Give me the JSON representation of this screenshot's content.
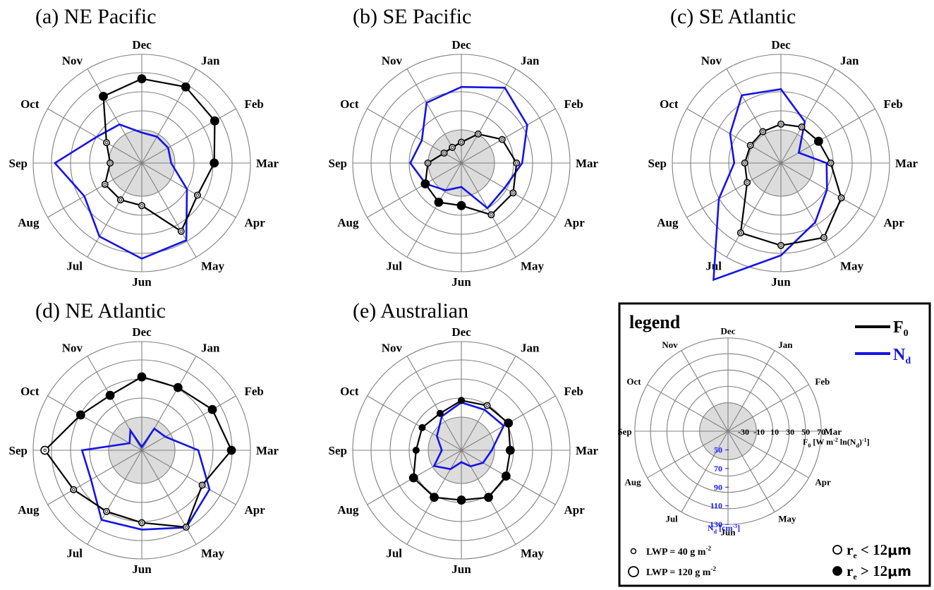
{
  "colors": {
    "f0": "#000000",
    "nd": "#1414e6",
    "ring": "#808080",
    "spoke": "#808080",
    "inner": "#dcdcdc"
  },
  "months": [
    "Dec",
    "Jan",
    "Feb",
    "Mar",
    "Apr",
    "May",
    "Jun",
    "Jul",
    "Aug",
    "Sep",
    "Oct",
    "Nov"
  ],
  "legend": {
    "title": "legend",
    "f0_label": "F",
    "f0_sub": "0",
    "nd_label": "N",
    "nd_sub": "d",
    "f0_ticks": [
      "-30",
      "-10",
      "10",
      "30",
      "50",
      "70"
    ],
    "f0_axis_label": "F",
    "f0_axis_label_sub": "0",
    "f0_axis_label_rest": " [W m",
    "f0_axis_label_sup": "-2",
    "f0_axis_label_tail": " ln(N",
    "f0_axis_label_sub2": "d",
    "f0_axis_label_end": ")",
    "f0_axis_label_sup2": "-1",
    "f0_axis_label_close": "]",
    "nd_ticks": [
      "50",
      "70",
      "90",
      "110",
      "130"
    ],
    "nd_axis_label": "N",
    "nd_axis_label_sub": "d",
    "nd_axis_label_rest": " [cm",
    "nd_axis_label_sup": "-3",
    "nd_axis_label_close": "]",
    "lwp_small": "LWP = 40 g m",
    "lwp_small_sup": "-2",
    "lwp_large": "LWP = 120 g m",
    "lwp_large_sup": "-2",
    "re_small_pre": "r",
    "re_small_sub": "e",
    "re_small_post": " < 12",
    "re_small_unit": "μm",
    "re_large_pre": "r",
    "re_large_sub": "e",
    "re_large_post": " > 12",
    "re_large_unit": "μm"
  },
  "chart_data": [
    {
      "type": "radar",
      "title": "(a)   NE Pacific",
      "categories": [
        "Dec",
        "Jan",
        "Feb",
        "Mar",
        "Apr",
        "May",
        "Jun",
        "Jul",
        "Aug",
        "Sep",
        "Oct",
        "Nov"
      ],
      "f0_range": [
        -50,
        70
      ],
      "nd_range": [
        30,
        130
      ],
      "series": [
        {
          "name": "F0",
          "values": [
            43,
            47,
            43,
            30,
            21,
            37,
            -3,
            -3,
            -3,
            -15,
            -5,
            35
          ],
          "lwp": [
            "large",
            "large",
            "large",
            "large",
            "small",
            "small",
            "small",
            "small",
            "small",
            "small",
            "small",
            "large"
          ],
          "re": [
            "large",
            "large",
            "large",
            "large",
            "small",
            "small",
            "small",
            "small",
            "small",
            "small",
            "small",
            "large"
          ]
        },
        {
          "name": "Nd",
          "values": [
            58,
            58,
            58,
            57,
            78,
            112,
            118,
            108,
            91,
            110,
            78,
            71
          ]
        }
      ]
    },
    {
      "type": "radar",
      "title": "(b)   SE Pacific",
      "categories": [
        "Dec",
        "Jan",
        "Feb",
        "Mar",
        "Apr",
        "May",
        "Jun",
        "Jul",
        "Aug",
        "Sep",
        "Oct",
        "Nov"
      ],
      "f0_range": [
        -50,
        70
      ],
      "nd_range": [
        30,
        130
      ],
      "series": [
        {
          "name": "F0",
          "values": [
            -27,
            -13,
            2,
            11,
            16,
            16,
            -3,
            0,
            -4,
            -13,
            -28,
            -30
          ],
          "lwp": [
            "small",
            "small",
            "small",
            "small",
            "small",
            "small",
            "large",
            "large",
            "large",
            "small",
            "small",
            "small"
          ],
          "re": [
            "small",
            "small",
            "small",
            "small",
            "small",
            "small",
            "large",
            "large",
            "large",
            "small",
            "small",
            "small"
          ]
        },
        {
          "name": "Nd",
          "values": [
            100,
            110,
            100,
            86,
            76,
            78,
            52,
            59,
            68,
            77,
            72,
            94
          ]
        }
      ]
    },
    {
      "type": "radar",
      "title": "(c)   SE Atlantic",
      "categories": [
        "Dec",
        "Jan",
        "Feb",
        "Mar",
        "Apr",
        "May",
        "Jun",
        "Jul",
        "Aug",
        "Sep",
        "Oct",
        "Nov"
      ],
      "f0_range": [
        -50,
        70
      ],
      "nd_range": [
        30,
        130
      ],
      "series": [
        {
          "name": "F0",
          "values": [
            -7,
            -4,
            -2,
            5,
            27,
            45,
            41,
            39,
            -7,
            -10,
            -11,
            -10
          ],
          "lwp": [
            "small",
            "small",
            "large",
            "small",
            "small",
            "small",
            "small",
            "small",
            "small",
            "small",
            "small",
            "small"
          ],
          "re": [
            "small",
            "small",
            "large",
            "small",
            "small",
            "small",
            "small",
            "small",
            "small",
            "small",
            "small",
            "small"
          ]
        },
        {
          "name": "Nd",
          "values": [
            98,
            74,
            49,
            72,
            79,
            93,
            115,
            154,
            96,
            73,
            84,
            102
          ]
        }
      ]
    },
    {
      "type": "radar",
      "title": "(d)   NE Atlantic",
      "categories": [
        "Dec",
        "Jan",
        "Feb",
        "Mar",
        "Apr",
        "May",
        "Jun",
        "Jul",
        "Aug",
        "Sep",
        "Oct",
        "Nov"
      ],
      "f0_range": [
        -50,
        70
      ],
      "nd_range": [
        30,
        130
      ],
      "series": [
        {
          "name": "F0",
          "values": [
            31,
            30,
            40,
            49,
            27,
            48,
            30,
            28,
            37,
            57,
            28,
            20
          ],
          "lwp": [
            "large",
            "large",
            "large",
            "large",
            "small",
            "small",
            "small",
            "small",
            "small",
            "large",
            "large",
            "large"
          ],
          "re": [
            "large",
            "large",
            "large",
            "large",
            "small",
            "small",
            "small",
            "small",
            "small",
            "small",
            "large",
            "large"
          ]
        },
        {
          "name": "Nd",
          "values": [
            33,
            53,
            55,
            82,
            102,
            112,
            103,
            104,
            84,
            85,
            43,
            51
          ]
        }
      ]
    },
    {
      "type": "radar",
      "title": "(e)   Australian",
      "categories": [
        "Dec",
        "Jan",
        "Feb",
        "Mar",
        "Apr",
        "May",
        "Jun",
        "Jul",
        "Aug",
        "Sep",
        "Oct",
        "Nov"
      ],
      "f0_range": [
        -50,
        70
      ],
      "nd_range": [
        30,
        130
      ],
      "series": [
        {
          "name": "F0",
          "values": [
            5,
            7,
            10,
            4,
            7,
            10,
            5,
            10,
            11,
            0,
            0,
            -3
          ],
          "lwp": [
            "small",
            "small",
            "large",
            "large",
            "large",
            "large",
            "large",
            "large",
            "large",
            "small",
            "small",
            "small"
          ],
          "re": [
            "large",
            "small",
            "large",
            "large",
            "large",
            "large",
            "large",
            "large",
            "large",
            "large",
            "large",
            "large"
          ]
        },
        {
          "name": "Nd",
          "values": [
            74,
            73,
            75,
            58,
            53,
            47,
            41,
            50,
            59,
            48,
            56,
            66
          ]
        }
      ]
    }
  ]
}
